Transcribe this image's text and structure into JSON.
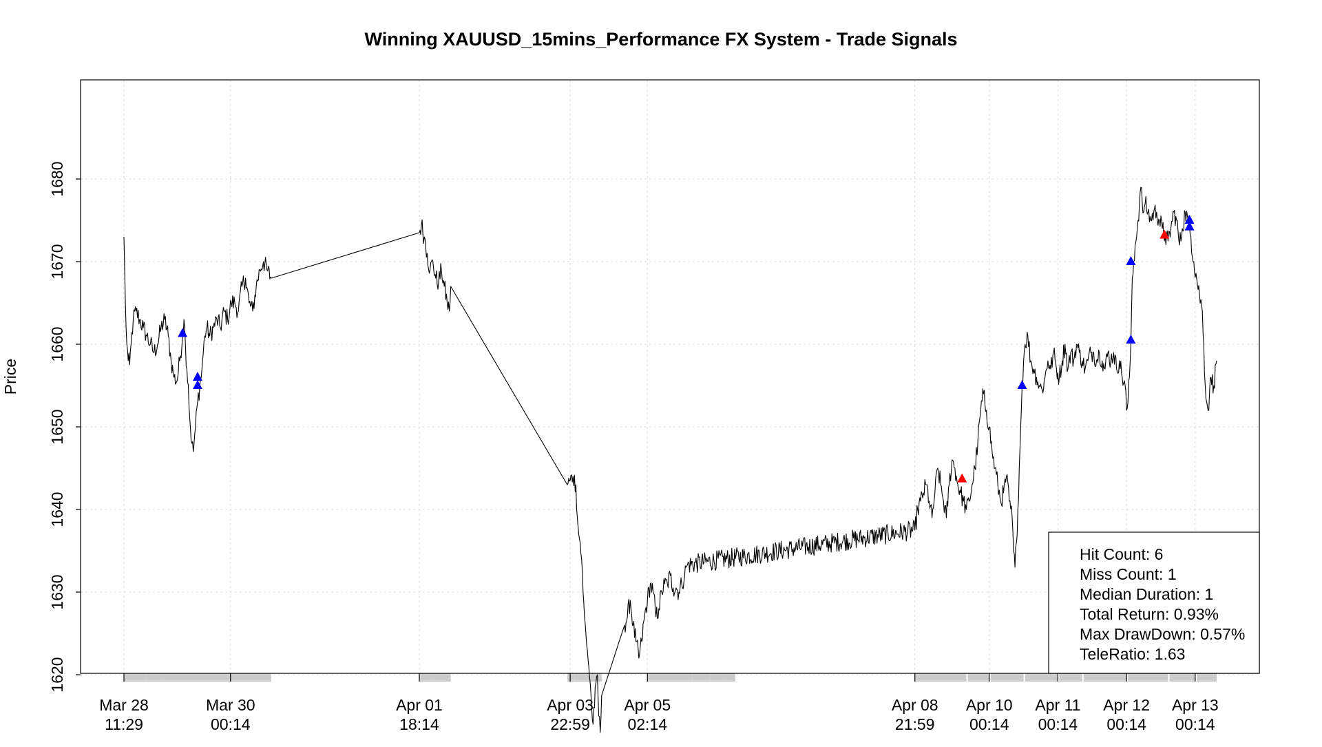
{
  "chart_data": {
    "type": "line",
    "title": "Winning XAUUSD_15mins_Performance FX System - Trade Signals",
    "ylabel": "Price",
    "xlabel": "",
    "y_ticks": [
      1620,
      1630,
      1640,
      1650,
      1660,
      1670,
      1680
    ],
    "x_ticks": [
      {
        "date": "Mar 28",
        "time": "11:29",
        "index": 0
      },
      {
        "date": "Mar 30",
        "time": "00:14",
        "index": 149
      },
      {
        "date": "Apr 01",
        "time": "18:14",
        "index": 413
      },
      {
        "date": "Apr 03",
        "time": "22:59",
        "index": 624
      },
      {
        "date": "Apr 05",
        "time": "02:14",
        "index": 732
      },
      {
        "date": "Apr 08",
        "time": "21:59",
        "index": 1106
      },
      {
        "date": "Apr 10",
        "time": "00:14",
        "index": 1210
      },
      {
        "date": "Apr 11",
        "time": "00:14",
        "index": 1306
      },
      {
        "date": "Apr 12",
        "time": "00:14",
        "index": 1402
      },
      {
        "date": "Apr 13",
        "time": "00:14",
        "index": 1498
      }
    ],
    "grid": true,
    "price_anchors": [
      [
        0,
        1673
      ],
      [
        2,
        1665
      ],
      [
        4,
        1660
      ],
      [
        6,
        1658
      ],
      [
        8,
        1657.5
      ],
      [
        10,
        1660
      ],
      [
        13,
        1663
      ],
      [
        17,
        1664
      ],
      [
        22,
        1663
      ],
      [
        27,
        1662
      ],
      [
        32,
        1661
      ],
      [
        37,
        1660
      ],
      [
        42,
        1659
      ],
      [
        47,
        1660
      ],
      [
        52,
        1662
      ],
      [
        57,
        1663
      ],
      [
        62,
        1661
      ],
      [
        66,
        1658
      ],
      [
        70,
        1656
      ],
      [
        74,
        1655.5
      ],
      [
        78,
        1658
      ],
      [
        82,
        1661
      ],
      [
        84,
        1663
      ],
      [
        86,
        1660
      ],
      [
        88,
        1657
      ],
      [
        90,
        1655
      ],
      [
        92,
        1651
      ],
      [
        95,
        1648
      ],
      [
        97,
        1647
      ],
      [
        100,
        1650
      ],
      [
        103,
        1653
      ],
      [
        106,
        1655
      ],
      [
        108,
        1656
      ],
      [
        110,
        1658
      ],
      [
        113,
        1661
      ],
      [
        116,
        1662
      ],
      [
        120,
        1661
      ],
      [
        125,
        1662
      ],
      [
        130,
        1663
      ],
      [
        135,
        1662
      ],
      [
        140,
        1664
      ],
      [
        145,
        1663
      ],
      [
        150,
        1665
      ],
      [
        155,
        1665
      ],
      [
        160,
        1664
      ],
      [
        165,
        1667
      ],
      [
        170,
        1668
      ],
      [
        175,
        1665
      ],
      [
        180,
        1664
      ],
      [
        185,
        1667
      ],
      [
        190,
        1669
      ],
      [
        195,
        1670
      ],
      [
        200,
        1669
      ],
      [
        206,
        1668
      ],
      [
        413,
        1673.5
      ],
      [
        416,
        1674.5
      ],
      [
        420,
        1673
      ],
      [
        424,
        1671
      ],
      [
        428,
        1669
      ],
      [
        432,
        1670
      ],
      [
        436,
        1668
      ],
      [
        440,
        1667.5
      ],
      [
        444,
        1669
      ],
      [
        448,
        1667
      ],
      [
        452,
        1665
      ],
      [
        455,
        1664
      ],
      [
        457,
        1667
      ],
      [
        620,
        1643
      ],
      [
        624,
        1643.5
      ],
      [
        628,
        1644
      ],
      [
        632,
        1643
      ],
      [
        634,
        1639
      ],
      [
        636,
        1637
      ],
      [
        638,
        1636
      ],
      [
        640,
        1634
      ],
      [
        642,
        1630
      ],
      [
        644,
        1627
      ],
      [
        646,
        1625
      ],
      [
        648,
        1623
      ],
      [
        650,
        1621
      ],
      [
        652,
        1619
      ],
      [
        654,
        1616
      ],
      [
        656,
        1614
      ],
      [
        658,
        1616
      ],
      [
        660,
        1619
      ],
      [
        662,
        1620
      ],
      [
        664,
        1615
      ],
      [
        666,
        1613
      ],
      [
        668,
        1617.5
      ],
      [
        700,
        1626
      ],
      [
        704,
        1627
      ],
      [
        708,
        1629
      ],
      [
        712,
        1626
      ],
      [
        716,
        1624
      ],
      [
        720,
        1622
      ],
      [
        724,
        1624
      ],
      [
        728,
        1627
      ],
      [
        732,
        1629
      ],
      [
        736,
        1631
      ],
      [
        740,
        1630
      ],
      [
        744,
        1627
      ],
      [
        748,
        1628
      ],
      [
        752,
        1630
      ],
      [
        756,
        1631
      ],
      [
        760,
        1631
      ],
      [
        764,
        1632
      ],
      [
        768,
        1630.5
      ],
      [
        772,
        1630.5
      ],
      [
        776,
        1630
      ],
      [
        780,
        1631
      ],
      [
        784,
        1632
      ],
      [
        786,
        1633
      ],
      [
        788,
        1633.3
      ],
      [
        1106,
        1637.5
      ],
      [
        1110,
        1640
      ],
      [
        1114,
        1641
      ],
      [
        1118,
        1642
      ],
      [
        1122,
        1643
      ],
      [
        1126,
        1641
      ],
      [
        1130,
        1639
      ],
      [
        1134,
        1642
      ],
      [
        1138,
        1645
      ],
      [
        1142,
        1643
      ],
      [
        1146,
        1641
      ],
      [
        1150,
        1639
      ],
      [
        1154,
        1643
      ],
      [
        1158,
        1646
      ],
      [
        1162,
        1645
      ],
      [
        1166,
        1643
      ],
      [
        1170,
        1642
      ],
      [
        1174,
        1641
      ],
      [
        1178,
        1640
      ],
      [
        1182,
        1641
      ],
      [
        1186,
        1643
      ],
      [
        1190,
        1645
      ],
      [
        1194,
        1648
      ],
      [
        1198,
        1652
      ],
      [
        1202,
        1654
      ],
      [
        1206,
        1652
      ],
      [
        1210,
        1650
      ],
      [
        1214,
        1647
      ],
      [
        1218,
        1645
      ],
      [
        1222,
        1643
      ],
      [
        1226,
        1641
      ],
      [
        1230,
        1642
      ],
      [
        1234,
        1644
      ],
      [
        1238,
        1641
      ],
      [
        1242,
        1639
      ],
      [
        1244,
        1635
      ],
      [
        1246,
        1633
      ],
      [
        1248,
        1636
      ],
      [
        1250,
        1640
      ],
      [
        1252,
        1645
      ],
      [
        1254,
        1650
      ],
      [
        1256,
        1655
      ],
      [
        1258,
        1658
      ],
      [
        1260,
        1660
      ],
      [
        1264,
        1661
      ],
      [
        1268,
        1658
      ],
      [
        1272,
        1657
      ],
      [
        1276,
        1656
      ],
      [
        1280,
        1655
      ],
      [
        1284,
        1654.5
      ],
      [
        1288,
        1656
      ],
      [
        1292,
        1658
      ],
      [
        1296,
        1657
      ],
      [
        1300,
        1659
      ],
      [
        1304,
        1657
      ],
      [
        1308,
        1656
      ],
      [
        1312,
        1658
      ],
      [
        1316,
        1660
      ],
      [
        1320,
        1657
      ],
      [
        1324,
        1659
      ],
      [
        1328,
        1658
      ],
      [
        1332,
        1660
      ],
      [
        1336,
        1659
      ],
      [
        1340,
        1658
      ],
      [
        1344,
        1657
      ],
      [
        1348,
        1658
      ],
      [
        1352,
        1659
      ],
      [
        1356,
        1659
      ],
      [
        1360,
        1658
      ],
      [
        1364,
        1659
      ],
      [
        1368,
        1658
      ],
      [
        1372,
        1657
      ],
      [
        1376,
        1659
      ],
      [
        1380,
        1658
      ],
      [
        1384,
        1659
      ],
      [
        1388,
        1657
      ],
      [
        1392,
        1658
      ],
      [
        1396,
        1656
      ],
      [
        1400,
        1655
      ],
      [
        1402,
        1652
      ],
      [
        1404,
        1653
      ],
      [
        1406,
        1656
      ],
      [
        1408,
        1660
      ],
      [
        1410,
        1668
      ],
      [
        1412,
        1670
      ],
      [
        1414,
        1672
      ],
      [
        1416,
        1673
      ],
      [
        1418,
        1675
      ],
      [
        1420,
        1677
      ],
      [
        1422,
        1679
      ],
      [
        1424,
        1677
      ],
      [
        1426,
        1676
      ],
      [
        1428,
        1677
      ],
      [
        1432,
        1676
      ],
      [
        1436,
        1675
      ],
      [
        1440,
        1676
      ],
      [
        1444,
        1676
      ],
      [
        1448,
        1675
      ],
      [
        1452,
        1674
      ],
      [
        1456,
        1673
      ],
      [
        1460,
        1672.5
      ],
      [
        1464,
        1674
      ],
      [
        1468,
        1676
      ],
      [
        1472,
        1675
      ],
      [
        1476,
        1672
      ],
      [
        1480,
        1674
      ],
      [
        1484,
        1676
      ],
      [
        1488,
        1675
      ],
      [
        1492,
        1673
      ],
      [
        1496,
        1670
      ],
      [
        1500,
        1668
      ],
      [
        1504,
        1666
      ],
      [
        1508,
        1664
      ],
      [
        1510,
        1660
      ],
      [
        1512,
        1655
      ],
      [
        1514,
        1653
      ],
      [
        1516,
        1652
      ],
      [
        1518,
        1654
      ],
      [
        1520,
        1656
      ],
      [
        1524,
        1655
      ],
      [
        1528,
        1658
      ]
    ],
    "gaps_after_index": [
      206,
      457,
      668
    ],
    "signals": [
      {
        "index": 82,
        "price": 1661.3,
        "color": "#0000ff"
      },
      {
        "index": 103,
        "price": 1656,
        "color": "#0000ff"
      },
      {
        "index": 103,
        "price": 1655,
        "color": "#0000ff"
      },
      {
        "index": 1172,
        "price": 1643.7,
        "color": "#ff0000"
      },
      {
        "index": 1256,
        "price": 1655,
        "color": "#0000ff"
      },
      {
        "index": 1408,
        "price": 1660.5,
        "color": "#0000ff"
      },
      {
        "index": 1408,
        "price": 1670,
        "color": "#0000ff"
      },
      {
        "index": 1455,
        "price": 1673.2,
        "color": "#ff0000"
      },
      {
        "index": 1490,
        "price": 1675,
        "color": "#0000ff"
      },
      {
        "index": 1490,
        "price": 1674.2,
        "color": "#0000ff"
      }
    ],
    "session_bands": [
      [
        0,
        30
      ],
      [
        30,
        55
      ],
      [
        55,
        149
      ],
      [
        149,
        206
      ],
      [
        413,
        430
      ],
      [
        430,
        457
      ],
      [
        620,
        630
      ],
      [
        630,
        668
      ],
      [
        732,
        795
      ],
      [
        795,
        820
      ],
      [
        820,
        840
      ],
      [
        840,
        855
      ],
      [
        1106,
        1110
      ],
      [
        1110,
        1178
      ],
      [
        1180,
        1210
      ],
      [
        1212,
        1258
      ],
      [
        1260,
        1306
      ],
      [
        1308,
        1340
      ],
      [
        1342,
        1402
      ],
      [
        1404,
        1460
      ],
      [
        1462,
        1498
      ],
      [
        1500,
        1528
      ]
    ],
    "legend": {
      "position": "bottom-right",
      "lines": [
        "Hit Count: 6",
        "Miss Count: 1",
        "Median Duration: 1",
        "Total Return: 0.93%",
        "Max DrawDown: 0.57%",
        "TeleRatio: 1.63"
      ]
    }
  }
}
